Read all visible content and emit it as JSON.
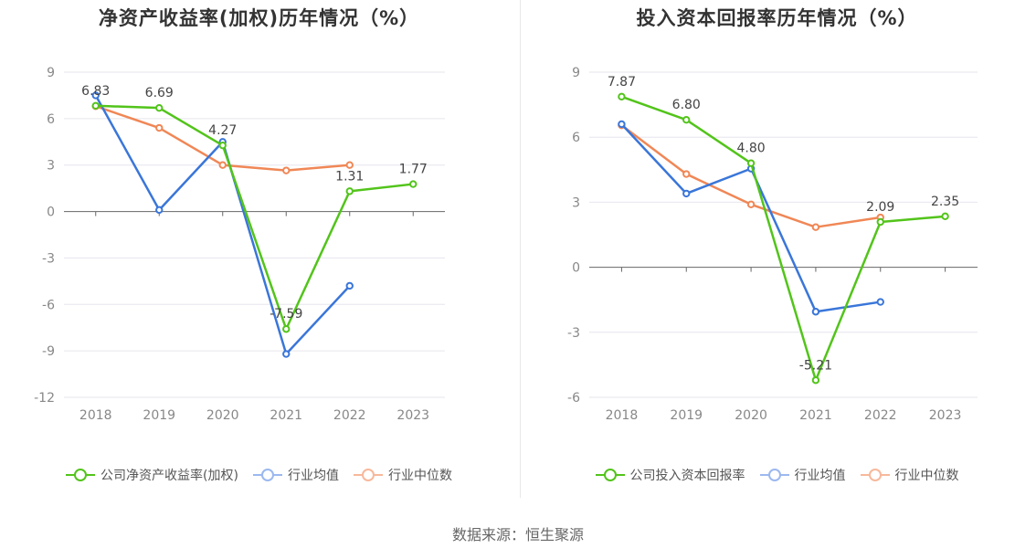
{
  "source": "数据来源：恒生聚源",
  "charts": [
    {
      "title": "净资产收益率(加权)历年情况（%）",
      "legend": [
        "公司净资产收益率(加权)",
        "行业均值",
        "行业中位数"
      ]
    },
    {
      "title": "投入资本回报率历年情况（%）",
      "legend": [
        "公司投入资本回报率",
        "行业均值",
        "行业中位数"
      ]
    }
  ],
  "colors": {
    "company": "#52c41a",
    "industry_avg": "#3a76d9",
    "industry_median": "#f08756"
  },
  "chart_data": [
    {
      "type": "line",
      "title": "净资产收益率(加权)历年情况（%）",
      "categories": [
        "2018",
        "2019",
        "2020",
        "2021",
        "2022",
        "2023"
      ],
      "ylim": [
        -12,
        9
      ],
      "yticks": [
        "9",
        "6",
        "3",
        "0",
        "-3",
        "-6",
        "-9",
        "-12"
      ],
      "series": [
        {
          "name": "公司净资产收益率(加权)",
          "values": [
            6.83,
            6.69,
            4.27,
            -7.59,
            1.31,
            1.77
          ],
          "labels": [
            "6.83",
            "6.69",
            "4.27",
            "-7.59",
            "1.31",
            "1.77"
          ]
        },
        {
          "name": "行业均值",
          "values": [
            7.5,
            0.1,
            4.5,
            -9.2,
            -4.8,
            null
          ]
        },
        {
          "name": "行业中位数",
          "values": [
            6.8,
            5.4,
            3.0,
            2.65,
            3.0,
            null
          ]
        }
      ],
      "grid": true,
      "legend_position": "bottom"
    },
    {
      "type": "line",
      "title": "投入资本回报率历年情况（%）",
      "categories": [
        "2018",
        "2019",
        "2020",
        "2021",
        "2022",
        "2023"
      ],
      "ylim": [
        -6,
        9
      ],
      "yticks": [
        "9",
        "6",
        "3",
        "0",
        "-3",
        "-6"
      ],
      "series": [
        {
          "name": "公司投入资本回报率",
          "values": [
            7.87,
            6.8,
            4.8,
            -5.21,
            2.09,
            2.35
          ],
          "labels": [
            "7.87",
            "6.80",
            "4.80",
            "-5.21",
            "2.09",
            "2.35"
          ]
        },
        {
          "name": "行业均值",
          "values": [
            6.6,
            3.4,
            4.55,
            -2.05,
            -1.6,
            null
          ]
        },
        {
          "name": "行业中位数",
          "values": [
            6.55,
            4.3,
            2.9,
            1.85,
            2.3,
            null
          ]
        }
      ],
      "grid": true,
      "legend_position": "bottom"
    }
  ]
}
